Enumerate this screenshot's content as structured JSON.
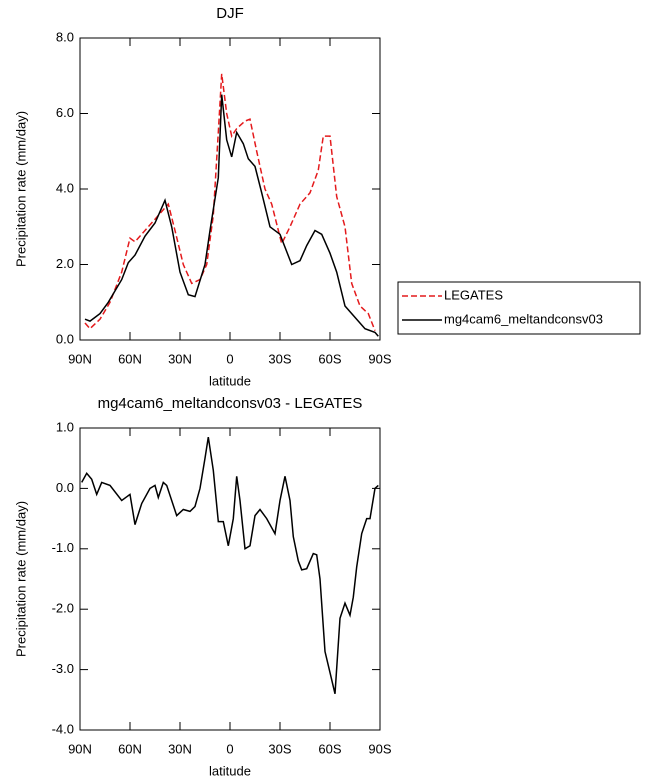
{
  "chart_data": [
    {
      "type": "line",
      "title": "DJF",
      "xlabel": "latitude",
      "ylabel": "Precipitation rate (mm/day)",
      "xlim": [
        90,
        -90
      ],
      "xticks": [
        {
          "value": 90,
          "label": "90N"
        },
        {
          "value": 60,
          "label": "60N"
        },
        {
          "value": 30,
          "label": "30N"
        },
        0,
        {
          "value": -30,
          "label": "30S"
        },
        {
          "value": -60,
          "label": "60S"
        },
        {
          "value": -90,
          "label": "90S"
        }
      ],
      "ylim": [
        0,
        8
      ],
      "yticks": [
        {
          "value": 0,
          "label": "0.0"
        },
        {
          "value": 2,
          "label": "2.0"
        },
        {
          "value": 4,
          "label": "4.0"
        },
        {
          "value": 6,
          "label": "6.0"
        },
        {
          "value": 8,
          "label": "8.0"
        }
      ],
      "legend": "right",
      "series": [
        {
          "name": "LEGATES",
          "color": "#e41a1c",
          "dash": true,
          "x": [
            87,
            84,
            78,
            72,
            65,
            60,
            57,
            51,
            45,
            37,
            33,
            28,
            23,
            18,
            14,
            10,
            7,
            5,
            2,
            -1,
            -4,
            -9,
            -12,
            -16,
            -21,
            -25,
            -31,
            -36,
            -42,
            -48,
            -53,
            -56,
            -60,
            -64,
            -69,
            -73,
            -78,
            -83,
            -87
          ],
          "values": [
            0.45,
            0.3,
            0.55,
            1.0,
            1.8,
            2.7,
            2.6,
            2.9,
            3.2,
            3.6,
            2.9,
            2.0,
            1.5,
            1.6,
            2.0,
            3.3,
            5.5,
            7.05,
            6.0,
            5.4,
            5.6,
            5.8,
            5.85,
            5.0,
            4.0,
            3.6,
            2.55,
            3.0,
            3.6,
            3.9,
            4.5,
            5.4,
            5.4,
            3.8,
            3.0,
            1.5,
            0.9,
            0.7,
            0.25
          ]
        },
        {
          "name": "mg4cam6_meltandconsv03",
          "color": "#000000",
          "dash": false,
          "x": [
            87,
            84,
            81,
            78,
            73,
            69,
            65,
            61,
            57,
            51,
            45,
            39,
            35,
            30,
            25,
            21,
            15,
            12,
            7,
            5,
            2,
            -1,
            -4,
            -8,
            -11,
            -15,
            -19,
            -24,
            -30,
            -37,
            -42,
            -46,
            -51,
            -55,
            -60,
            -64,
            -69,
            -75,
            -81,
            -87,
            -89
          ],
          "values": [
            0.55,
            0.5,
            0.6,
            0.7,
            1.0,
            1.3,
            1.6,
            2.05,
            2.25,
            2.75,
            3.1,
            3.7,
            3.0,
            1.8,
            1.2,
            1.15,
            2.0,
            2.9,
            4.3,
            6.5,
            5.3,
            4.85,
            5.5,
            5.2,
            4.8,
            4.6,
            3.9,
            3.0,
            2.8,
            2.0,
            2.1,
            2.5,
            2.9,
            2.8,
            2.3,
            1.8,
            0.9,
            0.6,
            0.3,
            0.2,
            0.1
          ]
        }
      ]
    },
    {
      "type": "line",
      "title": "mg4cam6_meltandconsv03 - LEGATES",
      "xlabel": "latitude",
      "ylabel": "Precipitation rate (mm/day)",
      "xlim": [
        90,
        -90
      ],
      "xticks": [
        {
          "value": 90,
          "label": "90N"
        },
        {
          "value": 60,
          "label": "60N"
        },
        {
          "value": 30,
          "label": "30N"
        },
        0,
        {
          "value": -30,
          "label": "30S"
        },
        {
          "value": -60,
          "label": "60S"
        },
        {
          "value": -90,
          "label": "90S"
        }
      ],
      "ylim": [
        -4,
        1
      ],
      "yticks": [
        {
          "value": 1,
          "label": "1.0"
        },
        {
          "value": 0,
          "label": "0.0"
        },
        {
          "value": -1,
          "label": "-1.0"
        },
        {
          "value": -2,
          "label": "-2.0"
        },
        {
          "value": -3,
          "label": "-3.0"
        },
        {
          "value": -4,
          "label": "-4.0"
        }
      ],
      "series": [
        {
          "color": "#000000",
          "dash": false,
          "x": [
            89,
            86,
            83,
            80,
            77,
            72,
            65,
            60,
            57,
            53,
            48,
            45,
            43,
            40,
            38,
            32,
            28,
            24,
            21,
            18,
            15,
            13,
            10,
            7,
            4,
            1,
            -2,
            -4,
            -6,
            -9,
            -12,
            -15,
            -18,
            -22,
            -27,
            -30,
            -33,
            -36,
            -38,
            -41,
            -43,
            -46,
            -50,
            -52,
            -54,
            -57,
            -60,
            -63,
            -66,
            -69,
            -72,
            -74,
            -76,
            -79,
            -82,
            -84,
            -87,
            -89
          ],
          "values": [
            0.1,
            0.25,
            0.15,
            -0.1,
            0.1,
            0.05,
            -0.2,
            -0.1,
            -0.6,
            -0.25,
            0.0,
            0.05,
            -0.15,
            0.1,
            0.05,
            -0.45,
            -0.35,
            -0.38,
            -0.3,
            0.0,
            0.5,
            0.85,
            0.3,
            -0.55,
            -0.55,
            -0.95,
            -0.5,
            0.2,
            -0.2,
            -1.0,
            -0.95,
            -0.45,
            -0.35,
            -0.5,
            -0.75,
            -0.2,
            0.2,
            -0.2,
            -0.8,
            -1.2,
            -1.35,
            -1.33,
            -1.08,
            -1.1,
            -1.5,
            -2.7,
            -3.05,
            -3.4,
            -2.15,
            -1.9,
            -2.1,
            -1.8,
            -1.3,
            -0.75,
            -0.5,
            -0.5,
            0.0,
            0.05
          ]
        }
      ]
    }
  ]
}
